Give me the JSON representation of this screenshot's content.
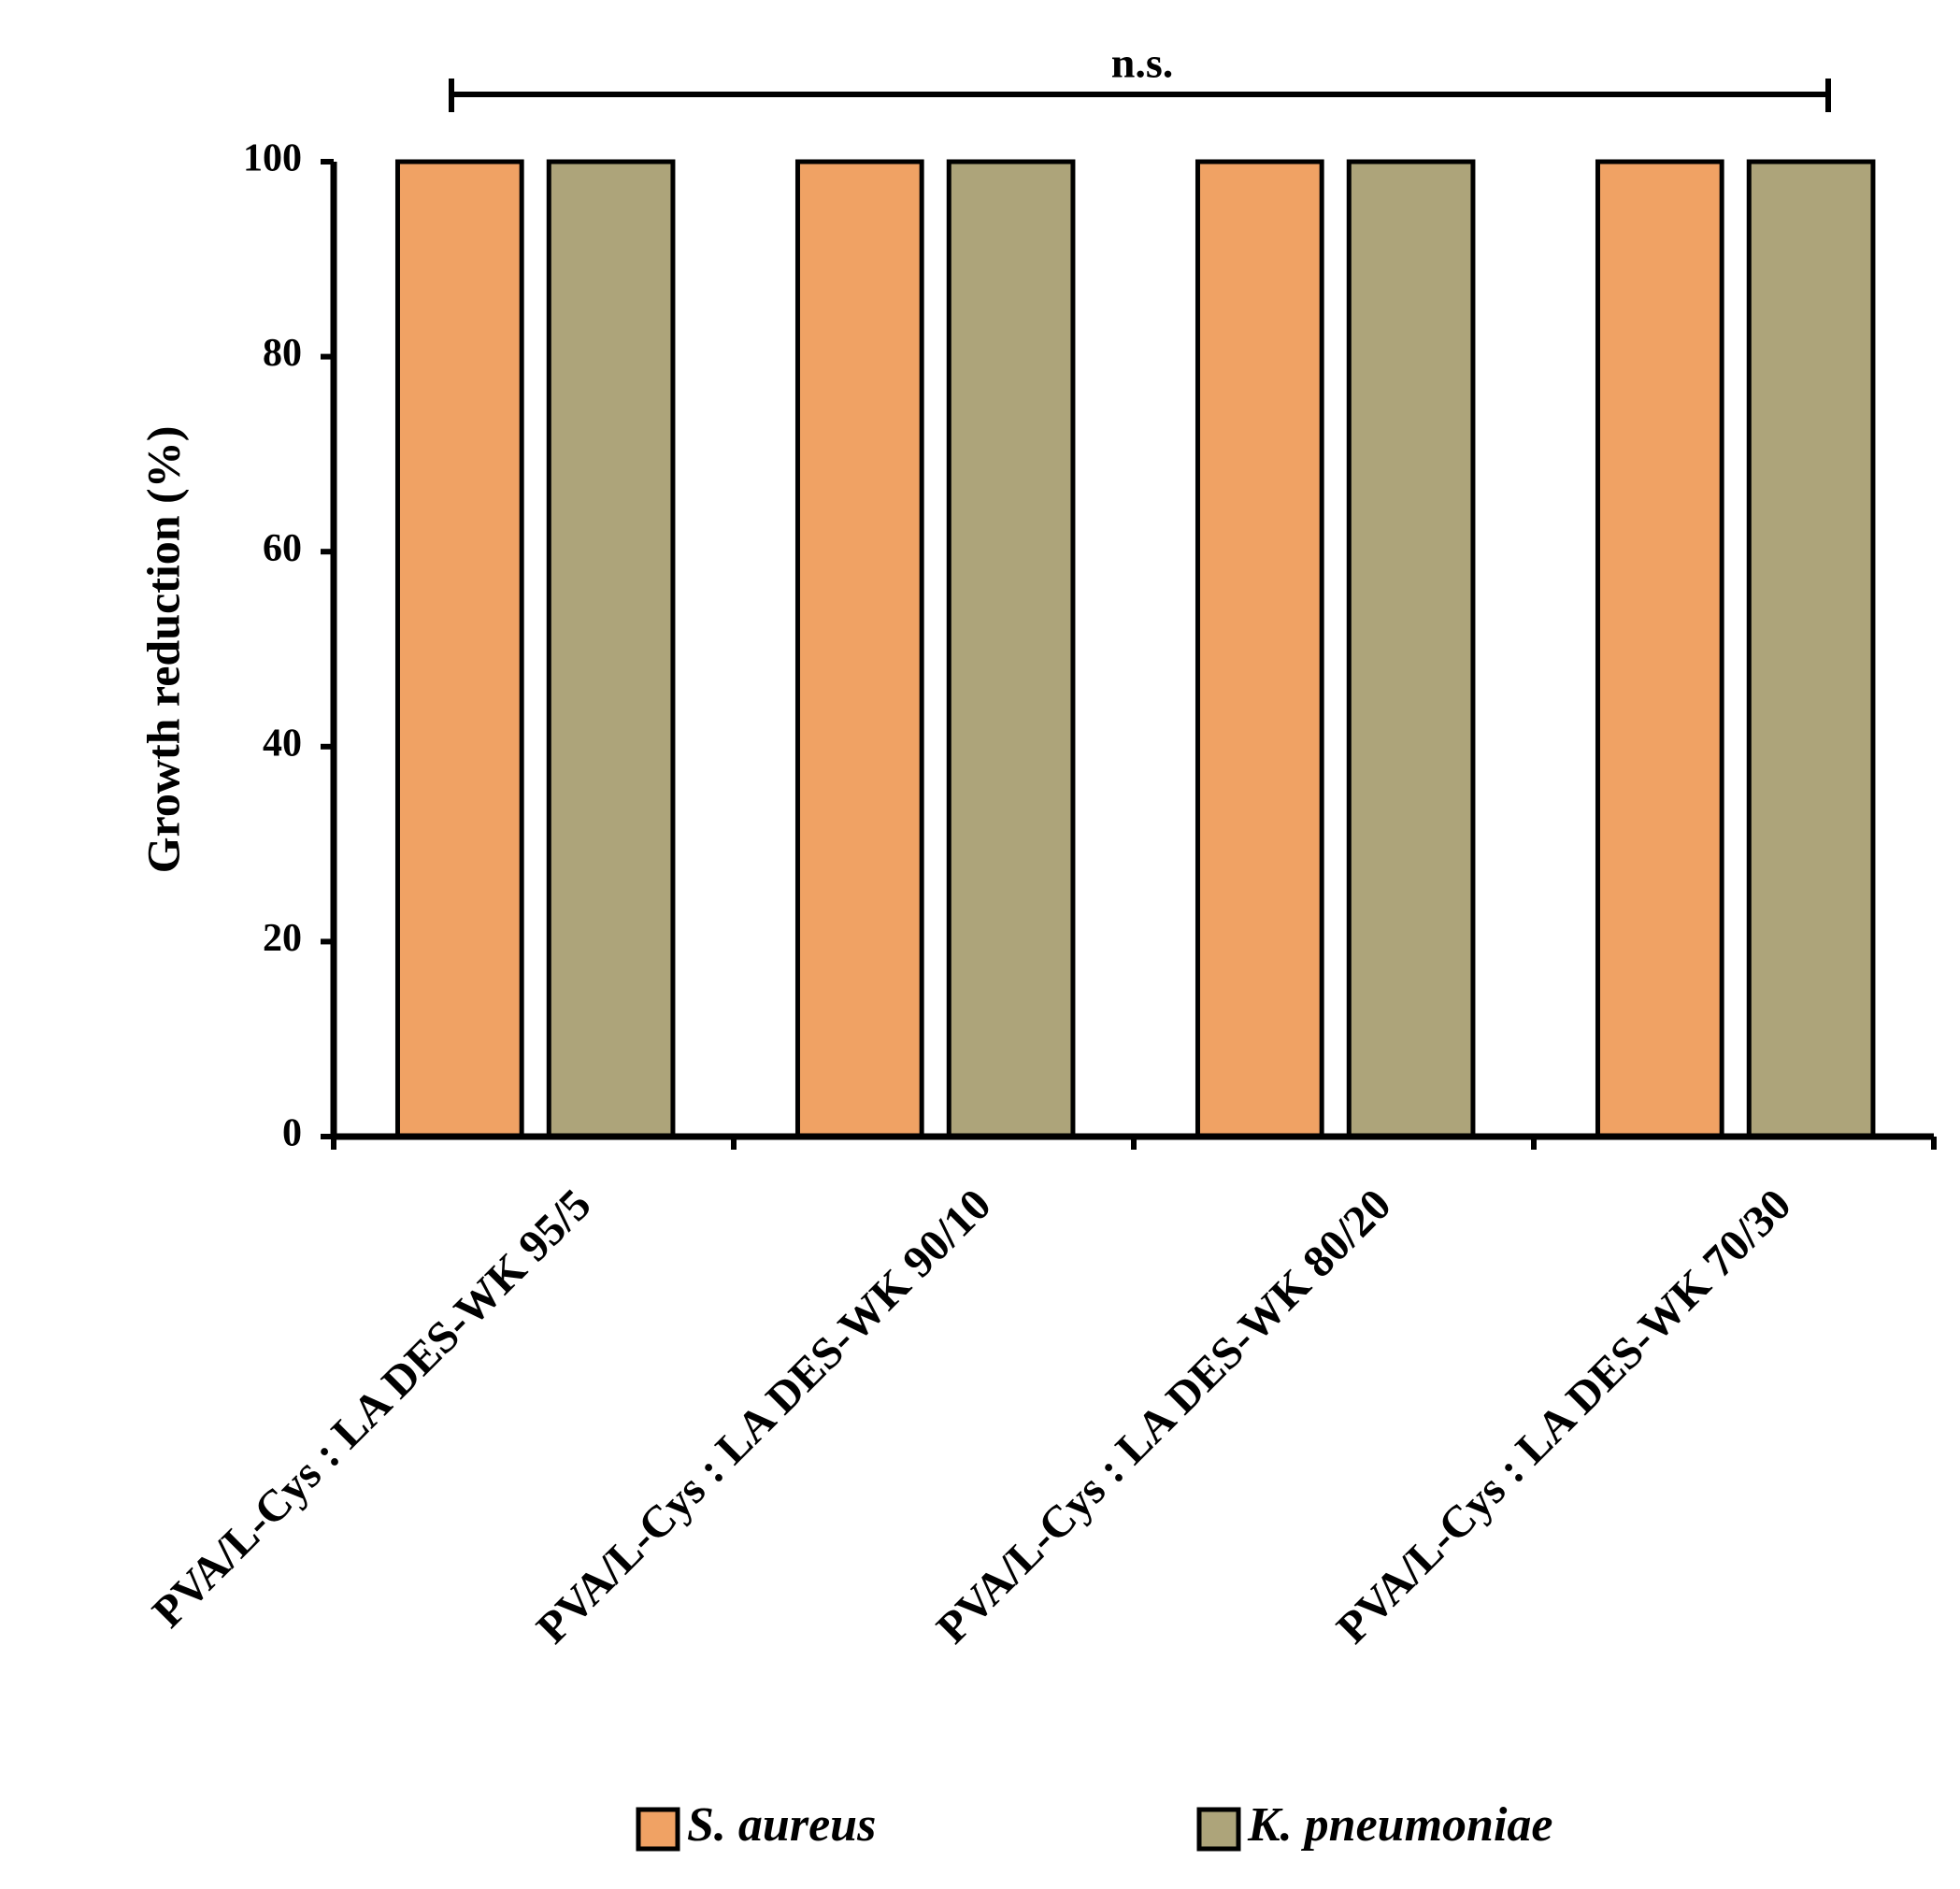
{
  "chart_data": {
    "type": "bar",
    "y_label": "Growth reduction (%)",
    "annotation": "n.s.",
    "categories": [
      "PVA/L-Cys : LA DES-WK 95/5",
      "PVA/L-Cys : LA DES-WK 90/10",
      "PVA/L-Cys : LA DES-WK 80/20",
      "PVA/L-Cys : LA DES-WK 70/30"
    ],
    "series": [
      {
        "name": "S. aureus",
        "color": "#f0a264",
        "values": [
          100,
          100,
          100,
          100
        ]
      },
      {
        "name": "K. pneumoniae",
        "color": "#ada47a",
        "values": [
          100,
          100,
          100,
          100
        ]
      }
    ],
    "ylim": [
      0,
      100
    ],
    "yticks": [
      0,
      20,
      40,
      60,
      80,
      100
    ],
    "grid": false
  }
}
